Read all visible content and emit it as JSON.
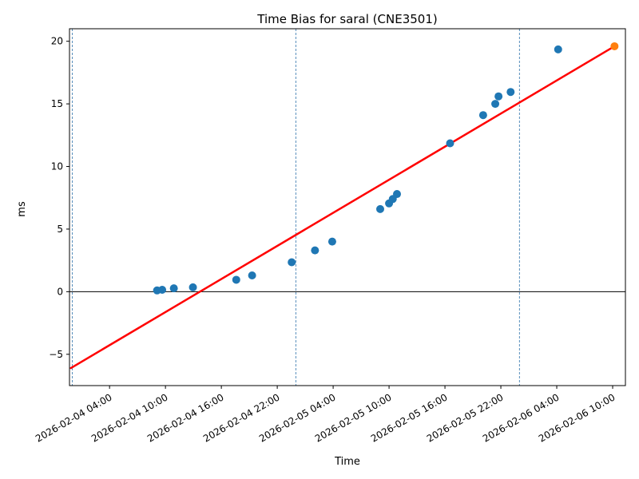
{
  "chart_data": {
    "type": "scatter",
    "title": "Time Bias for saral (CNE3501)",
    "xlabel": "Time",
    "ylabel": "ms",
    "x_unit": "hours since 2026-02-04 00:00",
    "xlim_hours": [
      -0.3,
      59.37
    ],
    "ylim_ms": [
      -7.5,
      21.0
    ],
    "grid": "off",
    "legend": "none",
    "y_ticks": [
      {
        "v": -5,
        "label": "−5"
      },
      {
        "v": 0,
        "label": "0"
      },
      {
        "v": 5,
        "label": "5"
      },
      {
        "v": 10,
        "label": "10"
      },
      {
        "v": 15,
        "label": "15"
      },
      {
        "v": 20,
        "label": "20"
      }
    ],
    "x_ticks": [
      {
        "t": 4,
        "label": "2026-02-04 04:00"
      },
      {
        "t": 10,
        "label": "2026-02-04 10:00"
      },
      {
        "t": 16,
        "label": "2026-02-04 16:00"
      },
      {
        "t": 22,
        "label": "2026-02-04 22:00"
      },
      {
        "t": 28,
        "label": "2026-02-05 04:00"
      },
      {
        "t": 34,
        "label": "2026-02-05 10:00"
      },
      {
        "t": 40,
        "label": "2026-02-05 16:00"
      },
      {
        "t": 46,
        "label": "2026-02-05 22:00"
      },
      {
        "t": 52,
        "label": "2026-02-06 04:00"
      },
      {
        "t": 58,
        "label": "2026-02-06 10:00"
      }
    ],
    "midnight_vlines_hours": [
      0,
      24,
      48
    ],
    "zero_line_ms": 0,
    "colors": {
      "points": "#1f77b4",
      "latest_point": "#ff7f0e",
      "trend": "#ff0000",
      "vline": "#4682b4",
      "zero_line": "#000000",
      "spine": "#000000"
    },
    "series": [
      {
        "name": "trend-line",
        "kind": "line",
        "color": "#ff0000",
        "width": 2.5,
        "points": [
          {
            "time": "2026-02-03 23:51",
            "t": -0.15,
            "ms": -6.1
          },
          {
            "time": "2026-02-06 10:12",
            "t": 58.2,
            "ms": 19.6
          }
        ]
      },
      {
        "name": "bias-points",
        "kind": "scatter",
        "color": "#1f77b4",
        "radius": 5,
        "points": [
          {
            "time": "2026-02-04 09:06",
            "t": 9.1,
            "ms": 0.1
          },
          {
            "time": "2026-02-04 09:39",
            "t": 9.65,
            "ms": 0.15
          },
          {
            "time": "2026-02-04 10:54",
            "t": 10.9,
            "ms": 0.27
          },
          {
            "time": "2026-02-04 12:57",
            "t": 12.95,
            "ms": 0.35
          },
          {
            "time": "2026-02-04 17:36",
            "t": 17.6,
            "ms": 0.95
          },
          {
            "time": "2026-02-04 19:18",
            "t": 19.3,
            "ms": 1.3
          },
          {
            "time": "2026-02-04 23:33",
            "t": 23.55,
            "ms": 2.35
          },
          {
            "time": "2026-02-05 02:03",
            "t": 26.05,
            "ms": 3.3
          },
          {
            "time": "2026-02-05 03:54",
            "t": 27.9,
            "ms": 4.0
          },
          {
            "time": "2026-02-05 09:03",
            "t": 33.05,
            "ms": 6.6
          },
          {
            "time": "2026-02-05 10:00",
            "t": 34.0,
            "ms": 7.05
          },
          {
            "time": "2026-02-05 10:24",
            "t": 34.4,
            "ms": 7.4
          },
          {
            "time": "2026-02-05 10:51",
            "t": 34.85,
            "ms": 7.8
          },
          {
            "time": "2026-02-05 16:33",
            "t": 40.55,
            "ms": 11.85
          },
          {
            "time": "2026-02-05 20:06",
            "t": 44.1,
            "ms": 14.1
          },
          {
            "time": "2026-02-05 21:24",
            "t": 45.4,
            "ms": 15.0
          },
          {
            "time": "2026-02-05 21:45",
            "t": 45.75,
            "ms": 15.6
          },
          {
            "time": "2026-02-05 23:03",
            "t": 47.05,
            "ms": 15.95
          },
          {
            "time": "2026-02-06 04:09",
            "t": 52.15,
            "ms": 19.35
          }
        ]
      },
      {
        "name": "latest-point",
        "kind": "scatter",
        "color": "#ff7f0e",
        "radius": 5,
        "points": [
          {
            "time": "2026-02-06 10:12",
            "t": 58.2,
            "ms": 19.6
          }
        ]
      }
    ]
  }
}
